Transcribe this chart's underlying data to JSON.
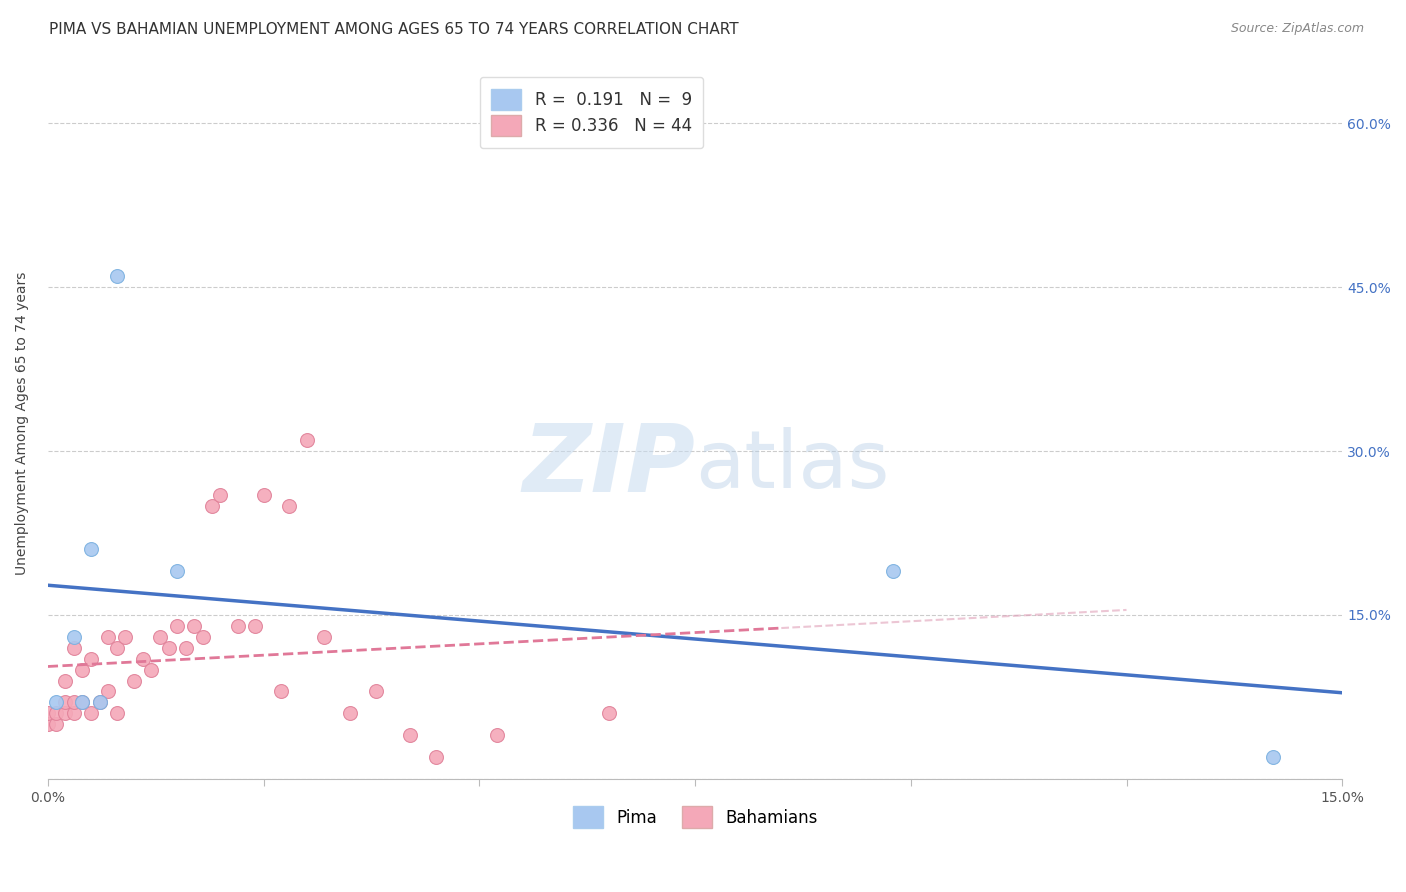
{
  "title": "PIMA VS BAHAMIAN UNEMPLOYMENT AMONG AGES 65 TO 74 YEARS CORRELATION CHART",
  "source": "Source: ZipAtlas.com",
  "xlabel": "",
  "ylabel": "Unemployment Among Ages 65 to 74 years",
  "xlim": [
    0.0,
    0.15
  ],
  "ylim": [
    0.0,
    0.65
  ],
  "xticks": [
    0.0,
    0.025,
    0.05,
    0.075,
    0.1,
    0.125,
    0.15
  ],
  "xtick_labels": [
    "0.0%",
    "",
    "",
    "",
    "",
    "",
    "15.0%"
  ],
  "yticks": [
    0.0,
    0.15,
    0.3,
    0.45,
    0.6
  ],
  "ytick_right_labels": [
    "",
    "15.0%",
    "30.0%",
    "45.0%",
    "60.0%"
  ],
  "pima_color": "#a8c8f0",
  "pima_edge_color": "#7ab0e0",
  "bahamas_color": "#f4a8b8",
  "bahamas_edge_color": "#e08098",
  "legend_box_pima": "#a8c8f0",
  "legend_box_bahamas": "#f4a8b8",
  "R_pima": 0.191,
  "N_pima": 9,
  "R_bahamas": 0.336,
  "N_bahamas": 44,
  "pima_x": [
    0.001,
    0.003,
    0.004,
    0.005,
    0.006,
    0.008,
    0.015,
    0.098,
    0.142
  ],
  "pima_y": [
    0.07,
    0.13,
    0.07,
    0.21,
    0.07,
    0.46,
    0.19,
    0.19,
    0.02
  ],
  "bahamas_x": [
    0.0,
    0.0,
    0.001,
    0.001,
    0.002,
    0.002,
    0.002,
    0.003,
    0.003,
    0.003,
    0.004,
    0.004,
    0.005,
    0.005,
    0.006,
    0.007,
    0.007,
    0.008,
    0.008,
    0.009,
    0.01,
    0.011,
    0.012,
    0.013,
    0.014,
    0.015,
    0.016,
    0.017,
    0.018,
    0.019,
    0.02,
    0.022,
    0.024,
    0.025,
    0.027,
    0.028,
    0.03,
    0.032,
    0.035,
    0.038,
    0.042,
    0.045,
    0.052,
    0.065
  ],
  "bahamas_y": [
    0.05,
    0.06,
    0.05,
    0.06,
    0.06,
    0.07,
    0.09,
    0.06,
    0.07,
    0.12,
    0.07,
    0.1,
    0.06,
    0.11,
    0.07,
    0.08,
    0.13,
    0.06,
    0.12,
    0.13,
    0.09,
    0.11,
    0.1,
    0.13,
    0.12,
    0.14,
    0.12,
    0.14,
    0.13,
    0.25,
    0.26,
    0.14,
    0.14,
    0.26,
    0.08,
    0.25,
    0.31,
    0.13,
    0.06,
    0.08,
    0.04,
    0.02,
    0.04,
    0.06
  ],
  "pima_line_intercept": 0.205,
  "pima_line_slope": 0.8,
  "bahamas_line_intercept": 0.07,
  "bahamas_line_slope": 1.8,
  "bahamas_line_xend": 0.085,
  "watermark_zip": "ZIP",
  "watermark_atlas": "atlas",
  "background_color": "#ffffff",
  "grid_color": "#cccccc",
  "title_fontsize": 11,
  "axis_label_fontsize": 10,
  "tick_fontsize": 10,
  "legend_fontsize": 12,
  "marker_size": 100,
  "right_tick_color": "#4472c4"
}
